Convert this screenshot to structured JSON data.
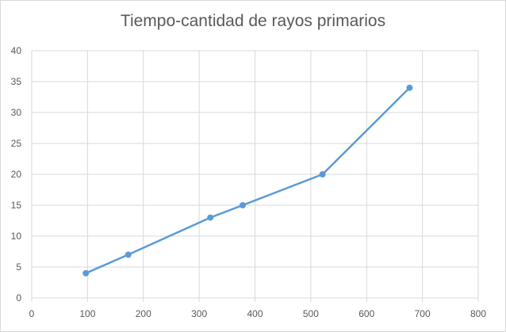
{
  "chart_data": {
    "type": "line",
    "title": "Tiempo-cantidad de rayos primarios",
    "xlabel": "",
    "ylabel": "",
    "xlim": [
      0,
      800
    ],
    "ylim": [
      0,
      40
    ],
    "x_ticks": [
      0,
      100,
      200,
      300,
      400,
      500,
      600,
      700,
      800
    ],
    "y_ticks": [
      0,
      5,
      10,
      15,
      20,
      25,
      30,
      35,
      40
    ],
    "grid": true,
    "legend": "none",
    "series": [
      {
        "points": [
          {
            "x": 97,
            "y": 4
          },
          {
            "x": 173,
            "y": 7
          },
          {
            "x": 320,
            "y": 13
          },
          {
            "x": 378,
            "y": 15
          },
          {
            "x": 521,
            "y": 20
          },
          {
            "x": 677,
            "y": 34
          }
        ],
        "color": "#5b9bd5"
      }
    ],
    "colors": {
      "grid": "#d9d9d9",
      "line": "#5b9bd5",
      "text": "#595959"
    }
  }
}
